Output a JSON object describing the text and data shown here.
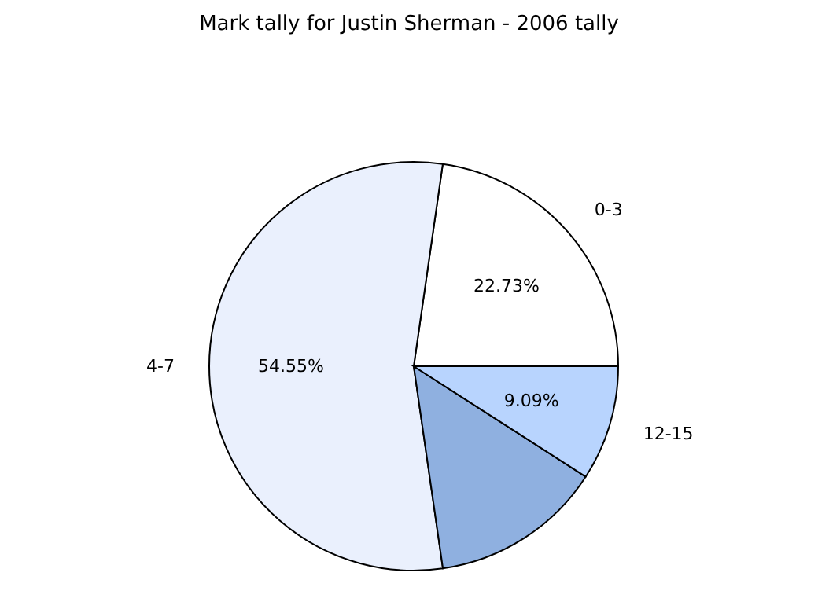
{
  "chart_data": {
    "type": "pie",
    "title": "Mark tally for Justin Sherman - 2006 tally",
    "categories": [
      "0-3",
      "4-7",
      null,
      "12-15"
    ],
    "values": [
      22.73,
      54.55,
      13.63,
      9.09
    ],
    "value_labels": [
      "22.73%",
      "54.55%",
      null,
      "9.09%"
    ],
    "colors": [
      "#ffffff",
      "#eaf0fd",
      "#8fb0e0",
      "#b8d4fe"
    ],
    "legend": false
  }
}
